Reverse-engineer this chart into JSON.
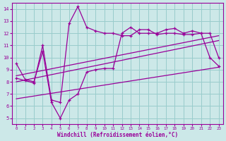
{
  "xlabel": "Windchill (Refroidissement éolien,°C)",
  "bg_color": "#cce8e8",
  "line_color": "#990099",
  "grid_color": "#99cccc",
  "line1_x": [
    0,
    1,
    2,
    3,
    4,
    5,
    6,
    7,
    8,
    9,
    10,
    11,
    12,
    13,
    14,
    15,
    16,
    17,
    18,
    19,
    20,
    21,
    22,
    23
  ],
  "line1_y": [
    9.5,
    8.2,
    8.0,
    10.5,
    6.3,
    5.0,
    6.5,
    7.0,
    8.8,
    9.0,
    9.1,
    9.1,
    12.0,
    12.5,
    12.0,
    12.0,
    12.0,
    12.3,
    12.4,
    12.0,
    12.2,
    12.0,
    12.0,
    10.0
  ],
  "line2_x": [
    0,
    1,
    2,
    3,
    4,
    5,
    6,
    7,
    8,
    9,
    10,
    11,
    12,
    13,
    14,
    15,
    16,
    17,
    18,
    19,
    20,
    21,
    22,
    23
  ],
  "line2_y": [
    8.3,
    8.1,
    7.9,
    11.0,
    6.5,
    6.3,
    12.8,
    14.2,
    12.5,
    12.2,
    12.0,
    12.0,
    11.8,
    11.8,
    12.3,
    12.3,
    11.9,
    12.0,
    12.0,
    11.9,
    11.9,
    12.0,
    10.0,
    9.3
  ],
  "trend1_x": [
    0,
    23
  ],
  "trend1_y": [
    8.5,
    11.8
  ],
  "trend2_x": [
    0,
    23
  ],
  "trend2_y": [
    8.0,
    11.4
  ],
  "trend3_x": [
    0,
    23
  ],
  "trend3_y": [
    6.6,
    9.2
  ],
  "ylim": [
    4.5,
    14.5
  ],
  "xlim": [
    -0.5,
    23.5
  ],
  "yticks": [
    5,
    6,
    7,
    8,
    9,
    10,
    11,
    12,
    13,
    14
  ],
  "xticks": [
    0,
    1,
    2,
    3,
    4,
    5,
    6,
    7,
    8,
    9,
    10,
    11,
    12,
    13,
    14,
    15,
    16,
    17,
    18,
    19,
    20,
    21,
    22,
    23
  ]
}
